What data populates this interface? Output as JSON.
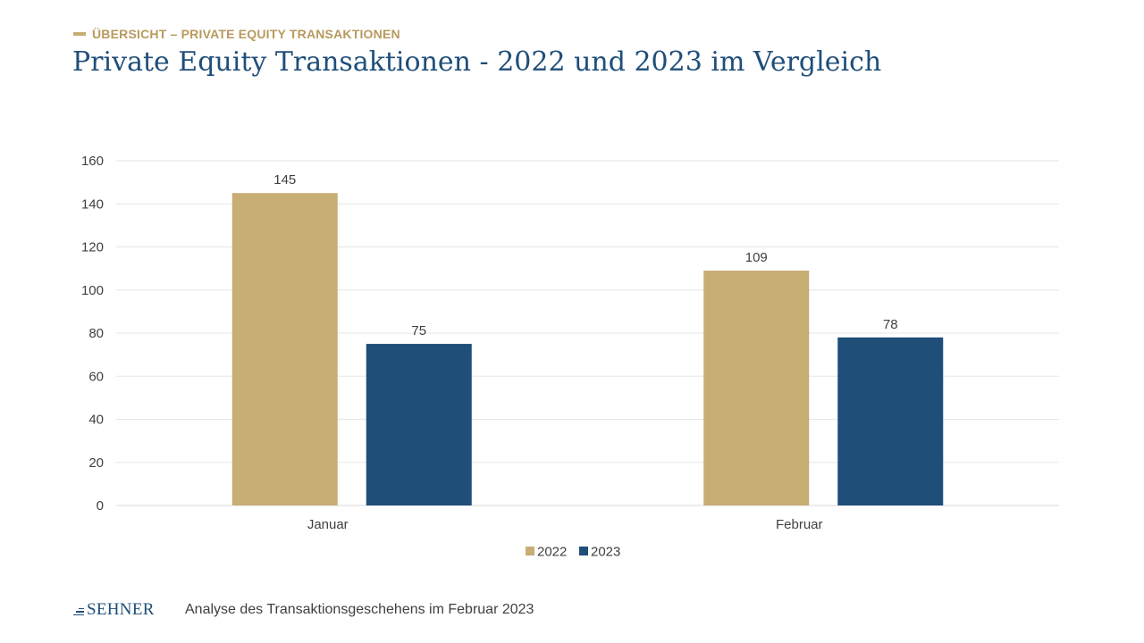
{
  "header": {
    "section_label": "ÜBERSICHT – PRIVATE EQUITY TRANSAKTIONEN",
    "title": "Private Equity Transaktionen - 2022 und 2023 im Vergleich"
  },
  "footer": {
    "logo_text": "SEHNER",
    "caption": "Analyse des Transaktionsgeschehens im Februar 2023"
  },
  "colors": {
    "series_2022": "#c8ad75",
    "series_2023": "#1f4e79",
    "title": "#1f4e79",
    "accent": "#b89a5e"
  },
  "chart_data": {
    "type": "bar",
    "categories": [
      "Januar",
      "Februar"
    ],
    "series": [
      {
        "name": "2022",
        "values": [
          145,
          109
        ]
      },
      {
        "name": "2023",
        "values": [
          75,
          78
        ]
      }
    ],
    "title": "",
    "xlabel": "",
    "ylabel": "",
    "ylim": [
      0,
      160
    ],
    "yticks": [
      0,
      20,
      40,
      60,
      80,
      100,
      120,
      140,
      160
    ],
    "grid": true,
    "legend": "bottom-center",
    "data_labels": true
  }
}
